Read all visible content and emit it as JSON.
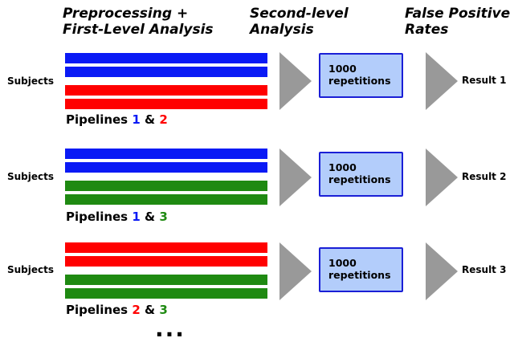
{
  "headers": [
    {
      "line1": "Preprocessing +",
      "line2": "First-Level Analysis"
    },
    {
      "line1": "Second-level",
      "line2": "Analysis"
    },
    {
      "line1": "False Positive",
      "line2": "Rates"
    }
  ],
  "colors": {
    "blue": "#0a1af5",
    "red": "#ff0000",
    "green": "#1f8a12",
    "arrow": "#999999",
    "box_fill": "#b3cdfb",
    "box_border": "#1a1fd6"
  },
  "rows": [
    {
      "subjects_label": "Subjects",
      "bars": [
        "blue",
        "blue",
        "red",
        "red"
      ],
      "caption_prefix": "Pipelines ",
      "pipeline_a": "1",
      "pipeline_a_color": "blue",
      "caption_mid": " & ",
      "pipeline_b": "2",
      "pipeline_b_color": "red",
      "box_line1": "1000",
      "box_line2": "repetitions",
      "result_label": "Result 1"
    },
    {
      "subjects_label": "Subjects",
      "bars": [
        "blue",
        "blue",
        "green",
        "green"
      ],
      "caption_prefix": "Pipelines ",
      "pipeline_a": "1",
      "pipeline_a_color": "blue",
      "caption_mid": " & ",
      "pipeline_b": "3",
      "pipeline_b_color": "green",
      "box_line1": "1000",
      "box_line2": "repetitions",
      "result_label": "Result 2"
    },
    {
      "subjects_label": "Subjects",
      "bars": [
        "red",
        "red",
        "green",
        "green"
      ],
      "caption_prefix": "Pipelines ",
      "pipeline_a": "2",
      "pipeline_a_color": "red",
      "caption_mid": " & ",
      "pipeline_b": "3",
      "pipeline_b_color": "green",
      "box_line1": "1000",
      "box_line2": "repetitions",
      "result_label": "Result 3"
    }
  ],
  "ellipsis": "..."
}
